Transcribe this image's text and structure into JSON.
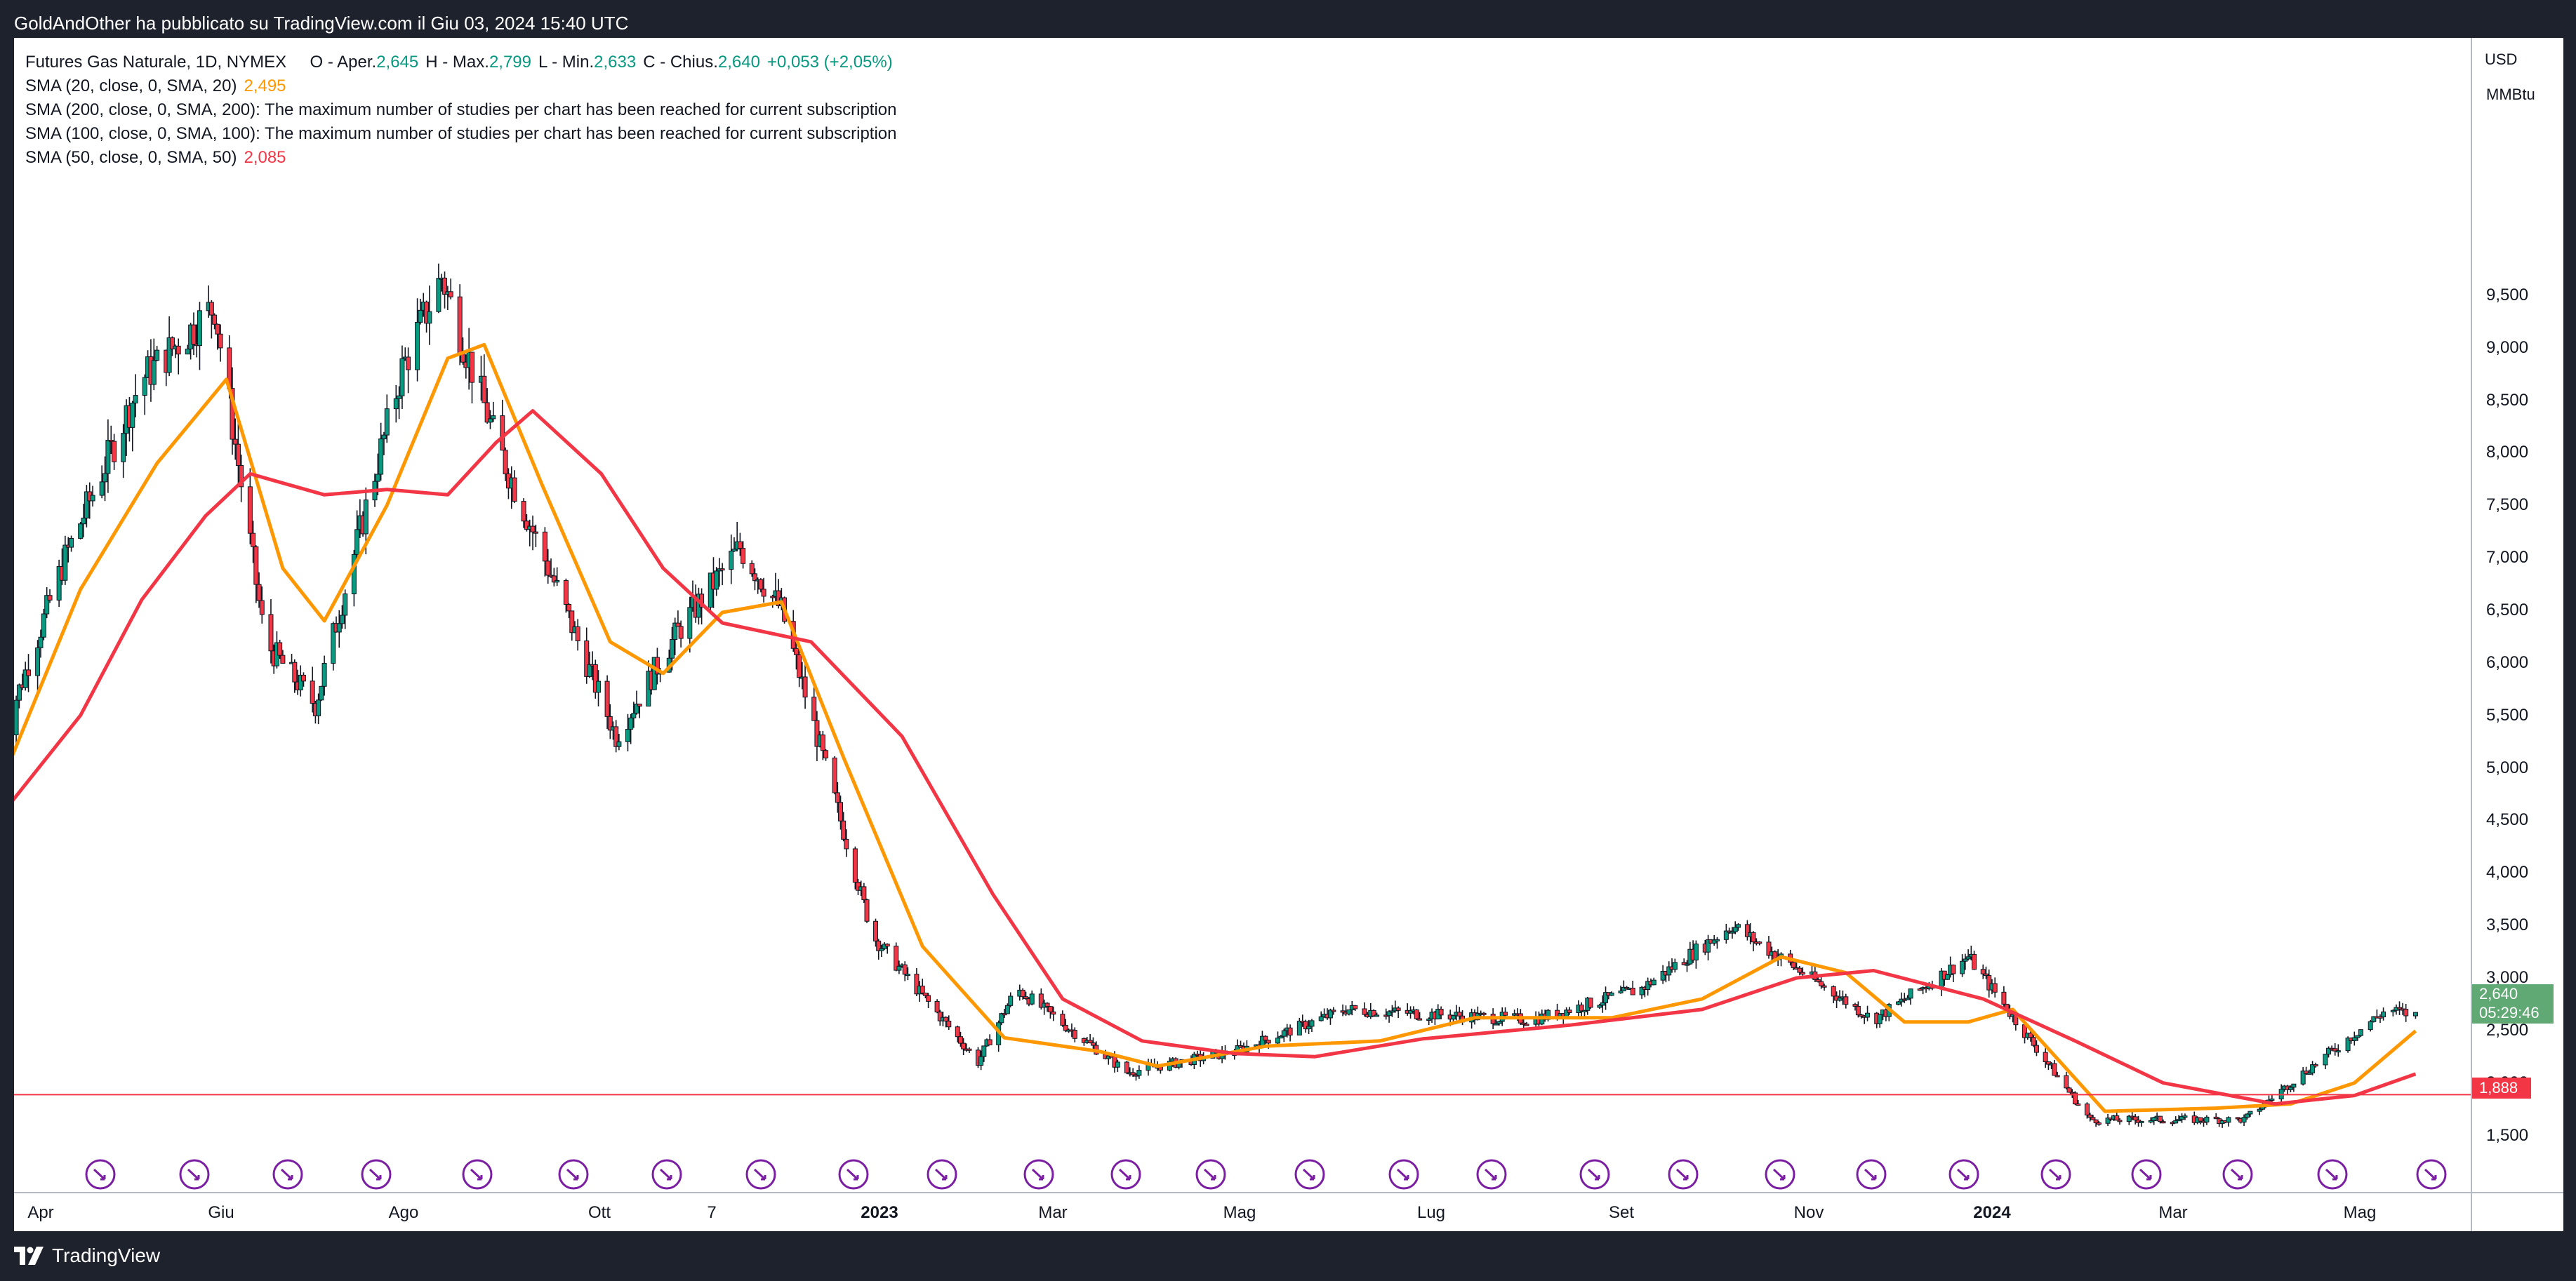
{
  "header": {
    "publish_text": "GoldAndOther ha pubblicato su TradingView.com il Giu 03, 2024 15:40 UTC"
  },
  "legend": {
    "symbol": "Futures Gas Naturale, 1D, NYMEX",
    "open_label": "O - Aper.",
    "open_value": "2,645",
    "high_label": "H - Max.",
    "high_value": "2,799",
    "low_label": "L - Min.",
    "low_value": "2,633",
    "close_label": "C - Chius.",
    "close_value": "2,640",
    "change_value": "+0,053 (+2,05%)",
    "sma20_label": "SMA (20, close, 0, SMA, 20)",
    "sma20_value": "2,495",
    "sma200_text": "SMA (200, close, 0, SMA, 200): The maximum number of studies per chart has been reached for current subscription",
    "sma100_text": "SMA (100, close, 0, SMA, 100): The maximum number of studies per chart has been reached for current subscription",
    "sma50_label": "SMA (50, close, 0, SMA, 50)",
    "sma50_value": "2,085"
  },
  "price_axis": {
    "currency": "USD",
    "unit": "MMBtu",
    "ticks": [
      "9,500",
      "9,000",
      "8,500",
      "8,000",
      "7,500",
      "7,000",
      "6,500",
      "6,000",
      "5,500",
      "5,000",
      "4,500",
      "4,000",
      "3,500",
      "3,000",
      "2,500",
      "2,000",
      "1,500"
    ],
    "last_price": "2,640",
    "countdown": "05:29:46",
    "level_price": "1,888"
  },
  "time_axis": {
    "labels": [
      {
        "text": "Apr",
        "bold": false
      },
      {
        "text": "Giu",
        "bold": false
      },
      {
        "text": "Ago",
        "bold": false
      },
      {
        "text": "Ott",
        "bold": false
      },
      {
        "text": "7",
        "bold": false
      },
      {
        "text": "2023",
        "bold": true
      },
      {
        "text": "Mar",
        "bold": false
      },
      {
        "text": "Mag",
        "bold": false
      },
      {
        "text": "Lug",
        "bold": false
      },
      {
        "text": "Set",
        "bold": false
      },
      {
        "text": "Nov",
        "bold": false
      },
      {
        "text": "2024",
        "bold": true
      },
      {
        "text": "Mar",
        "bold": false
      },
      {
        "text": "Mag",
        "bold": false
      }
    ]
  },
  "footer": {
    "brand": "TradingView"
  },
  "colors": {
    "up": "#089981",
    "down": "#f23645",
    "sma20": "#ff9800",
    "sma50": "#f23645",
    "level_line": "#f23645",
    "event_icon": "#7b1fa2"
  },
  "chart_data": {
    "type": "candlestick",
    "symbol": "Futures Gas Naturale",
    "interval": "1D",
    "exchange": "NYMEX",
    "ylim": [
      1100,
      10400
    ],
    "horizontal_level": 1888,
    "key_prices": [
      {
        "date": "2022-03-30",
        "close": 5250
      },
      {
        "date": "2022-04-20",
        "close": 7000
      },
      {
        "date": "2022-05-15",
        "close": 8700
      },
      {
        "date": "2022-06-08",
        "close": 9400
      },
      {
        "date": "2022-06-25",
        "close": 6200
      },
      {
        "date": "2022-07-12",
        "close": 5600
      },
      {
        "date": "2022-08-10",
        "close": 8800
      },
      {
        "date": "2022-08-23",
        "close": 9680
      },
      {
        "date": "2022-09-10",
        "close": 8100
      },
      {
        "date": "2022-09-30",
        "close": 6700
      },
      {
        "date": "2022-10-20",
        "close": 5300
      },
      {
        "date": "2022-11-10",
        "close": 6300
      },
      {
        "date": "2022-12-01",
        "close": 7100
      },
      {
        "date": "2022-12-15",
        "close": 6500
      },
      {
        "date": "2023-01-15",
        "close": 3400
      },
      {
        "date": "2023-02-20",
        "close": 2200
      },
      {
        "date": "2023-03-05",
        "close": 2900
      },
      {
        "date": "2023-04-10",
        "close": 2100
      },
      {
        "date": "2023-05-15",
        "close": 2300
      },
      {
        "date": "2023-06-20",
        "close": 2700
      },
      {
        "date": "2023-08-20",
        "close": 2600
      },
      {
        "date": "2023-09-25",
        "close": 2900
      },
      {
        "date": "2023-10-25",
        "close": 3500
      },
      {
        "date": "2023-12-10",
        "close": 2600
      },
      {
        "date": "2024-01-10",
        "close": 3200
      },
      {
        "date": "2024-02-20",
        "close": 1650
      },
      {
        "date": "2024-04-10",
        "close": 1650
      },
      {
        "date": "2024-05-25",
        "close": 2700
      },
      {
        "date": "2024-06-03",
        "close": 2640
      }
    ],
    "series": [
      {
        "name": "SMA (20, close, 0, SMA, 20)",
        "color": "#ff9800",
        "points": [
          {
            "x": "2022-03-30",
            "y": 4950
          },
          {
            "x": "2022-04-25",
            "y": 6700
          },
          {
            "x": "2022-05-20",
            "y": 7900
          },
          {
            "x": "2022-06-12",
            "y": 8700
          },
          {
            "x": "2022-07-01",
            "y": 6900
          },
          {
            "x": "2022-07-15",
            "y": 6400
          },
          {
            "x": "2022-08-05",
            "y": 7500
          },
          {
            "x": "2022-08-25",
            "y": 8900
          },
          {
            "x": "2022-09-06",
            "y": 9030
          },
          {
            "x": "2022-09-25",
            "y": 7700
          },
          {
            "x": "2022-10-18",
            "y": 6200
          },
          {
            "x": "2022-11-05",
            "y": 5900
          },
          {
            "x": "2022-11-25",
            "y": 6480
          },
          {
            "x": "2022-12-15",
            "y": 6580
          },
          {
            "x": "2023-01-05",
            "y": 5100
          },
          {
            "x": "2023-02-01",
            "y": 3300
          },
          {
            "x": "2023-03-01",
            "y": 2430
          },
          {
            "x": "2023-04-01",
            "y": 2300
          },
          {
            "x": "2023-04-20",
            "y": 2160
          },
          {
            "x": "2023-05-25",
            "y": 2350
          },
          {
            "x": "2023-07-01",
            "y": 2400
          },
          {
            "x": "2023-08-01",
            "y": 2620
          },
          {
            "x": "2023-09-15",
            "y": 2620
          },
          {
            "x": "2023-10-15",
            "y": 2800
          },
          {
            "x": "2023-11-10",
            "y": 3200
          },
          {
            "x": "2023-12-01",
            "y": 3050
          },
          {
            "x": "2023-12-20",
            "y": 2580
          },
          {
            "x": "2024-01-10",
            "y": 2580
          },
          {
            "x": "2024-01-25",
            "y": 2700
          },
          {
            "x": "2024-02-25",
            "y": 1730
          },
          {
            "x": "2024-04-01",
            "y": 1760
          },
          {
            "x": "2024-04-25",
            "y": 1800
          },
          {
            "x": "2024-05-15",
            "y": 2000
          },
          {
            "x": "2024-06-03",
            "y": 2495
          }
        ]
      },
      {
        "name": "SMA (50, close, 0, SMA, 50)",
        "color": "#f23645",
        "points": [
          {
            "x": "2022-03-30",
            "y": 4600
          },
          {
            "x": "2022-04-25",
            "y": 5500
          },
          {
            "x": "2022-05-15",
            "y": 6600
          },
          {
            "x": "2022-06-05",
            "y": 7400
          },
          {
            "x": "2022-06-20",
            "y": 7800
          },
          {
            "x": "2022-07-15",
            "y": 7600
          },
          {
            "x": "2022-08-05",
            "y": 7650
          },
          {
            "x": "2022-08-25",
            "y": 7600
          },
          {
            "x": "2022-09-10",
            "y": 8100
          },
          {
            "x": "2022-09-22",
            "y": 8400
          },
          {
            "x": "2022-10-15",
            "y": 7800
          },
          {
            "x": "2022-11-05",
            "y": 6900
          },
          {
            "x": "2022-11-25",
            "y": 6380
          },
          {
            "x": "2022-12-25",
            "y": 6200
          },
          {
            "x": "2023-01-25",
            "y": 5300
          },
          {
            "x": "2023-02-25",
            "y": 3800
          },
          {
            "x": "2023-03-20",
            "y": 2800
          },
          {
            "x": "2023-04-15",
            "y": 2400
          },
          {
            "x": "2023-05-15",
            "y": 2280
          },
          {
            "x": "2023-06-10",
            "y": 2250
          },
          {
            "x": "2023-07-15",
            "y": 2420
          },
          {
            "x": "2023-09-01",
            "y": 2550
          },
          {
            "x": "2023-10-15",
            "y": 2700
          },
          {
            "x": "2023-11-15",
            "y": 3000
          },
          {
            "x": "2023-12-10",
            "y": 3070
          },
          {
            "x": "2024-01-15",
            "y": 2800
          },
          {
            "x": "2024-02-15",
            "y": 2400
          },
          {
            "x": "2024-03-15",
            "y": 2000
          },
          {
            "x": "2024-04-20",
            "y": 1800
          },
          {
            "x": "2024-05-15",
            "y": 1880
          },
          {
            "x": "2024-06-03",
            "y": 2085
          }
        ]
      }
    ],
    "ohlc_latest": {
      "open": 2645,
      "high": 2799,
      "low": 2633,
      "close": 2640,
      "change": 0.053,
      "change_pct": 2.05
    }
  }
}
